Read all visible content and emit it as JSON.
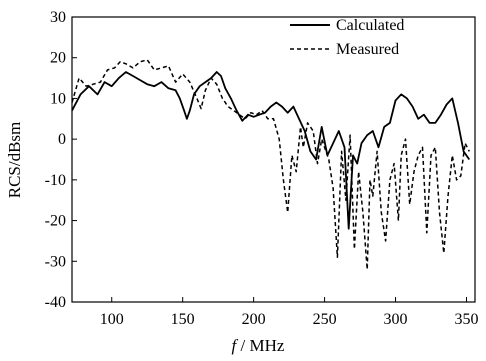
{
  "chart_data": {
    "type": "line",
    "xlabel_italic": "f",
    "xlabel_rest": " / MHz",
    "ylabel": "RCS/dBsm",
    "xlim": [
      72,
      356
    ],
    "ylim": [
      -40,
      30
    ],
    "xticks": [
      100,
      150,
      200,
      250,
      300,
      350
    ],
    "yticks": [
      30,
      20,
      10,
      0,
      -10,
      -20,
      -30,
      -40
    ],
    "legend_position": "top-right",
    "grid": false,
    "series": [
      {
        "name": "Calculated",
        "style": "solid",
        "color": "#000000",
        "x": [
          72,
          78,
          84,
          90,
          95,
          100,
          105,
          110,
          115,
          120,
          125,
          130,
          135,
          140,
          145,
          148,
          151,
          153,
          155,
          158,
          162,
          166,
          170,
          174,
          177,
          180,
          184,
          188,
          192,
          196,
          200,
          204,
          208,
          212,
          216,
          220,
          224,
          228,
          232,
          236,
          240,
          244,
          248,
          252,
          256,
          260,
          264,
          267,
          270,
          273,
          276,
          280,
          284,
          288,
          292,
          296,
          300,
          304,
          308,
          312,
          316,
          320,
          324,
          328,
          332,
          336,
          340,
          344,
          348,
          352
        ],
        "y": [
          7,
          11,
          13,
          11,
          14,
          13,
          15,
          16.5,
          15.5,
          14.5,
          13.5,
          13,
          14,
          12.5,
          12,
          10,
          7,
          5,
          7,
          11,
          13,
          14,
          15,
          16.5,
          15.5,
          12.5,
          10,
          7,
          4.5,
          6,
          5.5,
          6,
          6.5,
          8,
          9,
          8,
          6.5,
          8,
          5,
          2,
          -3,
          -5,
          3,
          -4,
          -1,
          2,
          -2,
          -22,
          -4,
          -6,
          -1,
          1,
          2,
          -2,
          3,
          4,
          9.5,
          11,
          10,
          8,
          5,
          6,
          4,
          4,
          6,
          8.5,
          10,
          4,
          -3,
          -5
        ]
      },
      {
        "name": "Measured",
        "style": "dashed",
        "color": "#000000",
        "x": [
          72,
          77,
          82,
          87,
          92,
          97,
          102,
          106,
          110,
          115,
          120,
          125,
          130,
          135,
          140,
          145,
          150,
          155,
          160,
          163,
          166,
          170,
          174,
          178,
          182,
          186,
          190,
          194,
          198,
          202,
          206,
          210,
          214,
          218,
          221,
          224,
          227,
          230,
          233,
          235,
          238,
          242,
          245,
          248,
          251,
          253,
          256,
          259,
          262,
          265,
          268,
          271,
          274,
          277,
          280,
          282,
          284,
          287,
          290,
          293,
          296,
          299,
          302,
          304,
          307,
          310,
          313,
          316,
          319,
          322,
          325,
          328,
          331,
          334,
          337,
          340,
          343,
          346,
          349,
          352
        ],
        "y": [
          9,
          15,
          13,
          13.5,
          14,
          17,
          17.5,
          19,
          18.5,
          17.5,
          19,
          19.5,
          17,
          17.5,
          18,
          14,
          16,
          14,
          10,
          7.5,
          12,
          15,
          13.5,
          10,
          8,
          7,
          6,
          5,
          6.5,
          6,
          7,
          5,
          5,
          0,
          -10,
          -18,
          -4,
          -8,
          3,
          -2,
          4,
          2,
          -6,
          0,
          -3,
          -5,
          -12,
          -29,
          -3,
          -15,
          1,
          -27,
          -8,
          -18,
          -32,
          -10,
          -14,
          -3,
          -18,
          -25,
          -10,
          -6,
          -20,
          -4,
          0,
          -16,
          -8,
          -4,
          -2,
          -23,
          -4,
          -2,
          -18,
          -28,
          -14,
          -4,
          -10,
          -9,
          -1,
          -3
        ]
      }
    ]
  }
}
